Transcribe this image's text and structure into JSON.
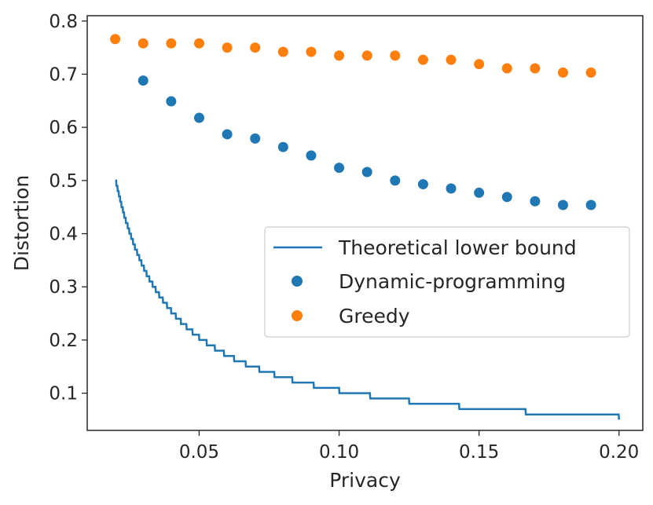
{
  "chart_data": {
    "type": "scatter",
    "title": "",
    "xlabel": "Privacy",
    "ylabel": "Distortion",
    "xlim": [
      0.01,
      0.2085
    ],
    "ylim": [
      0.03,
      0.81
    ],
    "xticks": [
      0.05,
      0.1,
      0.15,
      0.2
    ],
    "xtick_labels": [
      "0.05",
      "0.10",
      "0.15",
      "0.20"
    ],
    "yticks": [
      0.1,
      0.2,
      0.3,
      0.4,
      0.5,
      0.6,
      0.7,
      0.8
    ],
    "ytick_labels": [
      "0.1",
      "0.2",
      "0.3",
      "0.4",
      "0.5",
      "0.6",
      "0.7",
      "0.8"
    ],
    "grid": false,
    "legend_position": "center-right",
    "series": [
      {
        "name": "Theoretical lower bound",
        "kind": "step-line",
        "color": "#1f77b4",
        "x_start": 0.02,
        "x_end": 0.2
      },
      {
        "name": "Dynamic-programming",
        "kind": "scatter",
        "color": "#1f77b4",
        "x": [
          0.03,
          0.04,
          0.05,
          0.06,
          0.07,
          0.08,
          0.09,
          0.1,
          0.11,
          0.12,
          0.13,
          0.14,
          0.15,
          0.16,
          0.17,
          0.18,
          0.19
        ],
        "y": [
          0.688,
          0.649,
          0.618,
          0.587,
          0.579,
          0.563,
          0.547,
          0.524,
          0.516,
          0.5,
          0.493,
          0.485,
          0.477,
          0.469,
          0.461,
          0.454,
          0.454
        ]
      },
      {
        "name": "Greedy",
        "kind": "scatter",
        "color": "#ff7f0e",
        "x": [
          0.02,
          0.03,
          0.04,
          0.05,
          0.06,
          0.07,
          0.08,
          0.09,
          0.1,
          0.11,
          0.12,
          0.13,
          0.14,
          0.15,
          0.16,
          0.17,
          0.18,
          0.19
        ],
        "y": [
          0.766,
          0.758,
          0.758,
          0.758,
          0.75,
          0.75,
          0.742,
          0.742,
          0.735,
          0.735,
          0.735,
          0.727,
          0.727,
          0.719,
          0.711,
          0.711,
          0.703,
          0.703
        ]
      }
    ]
  }
}
